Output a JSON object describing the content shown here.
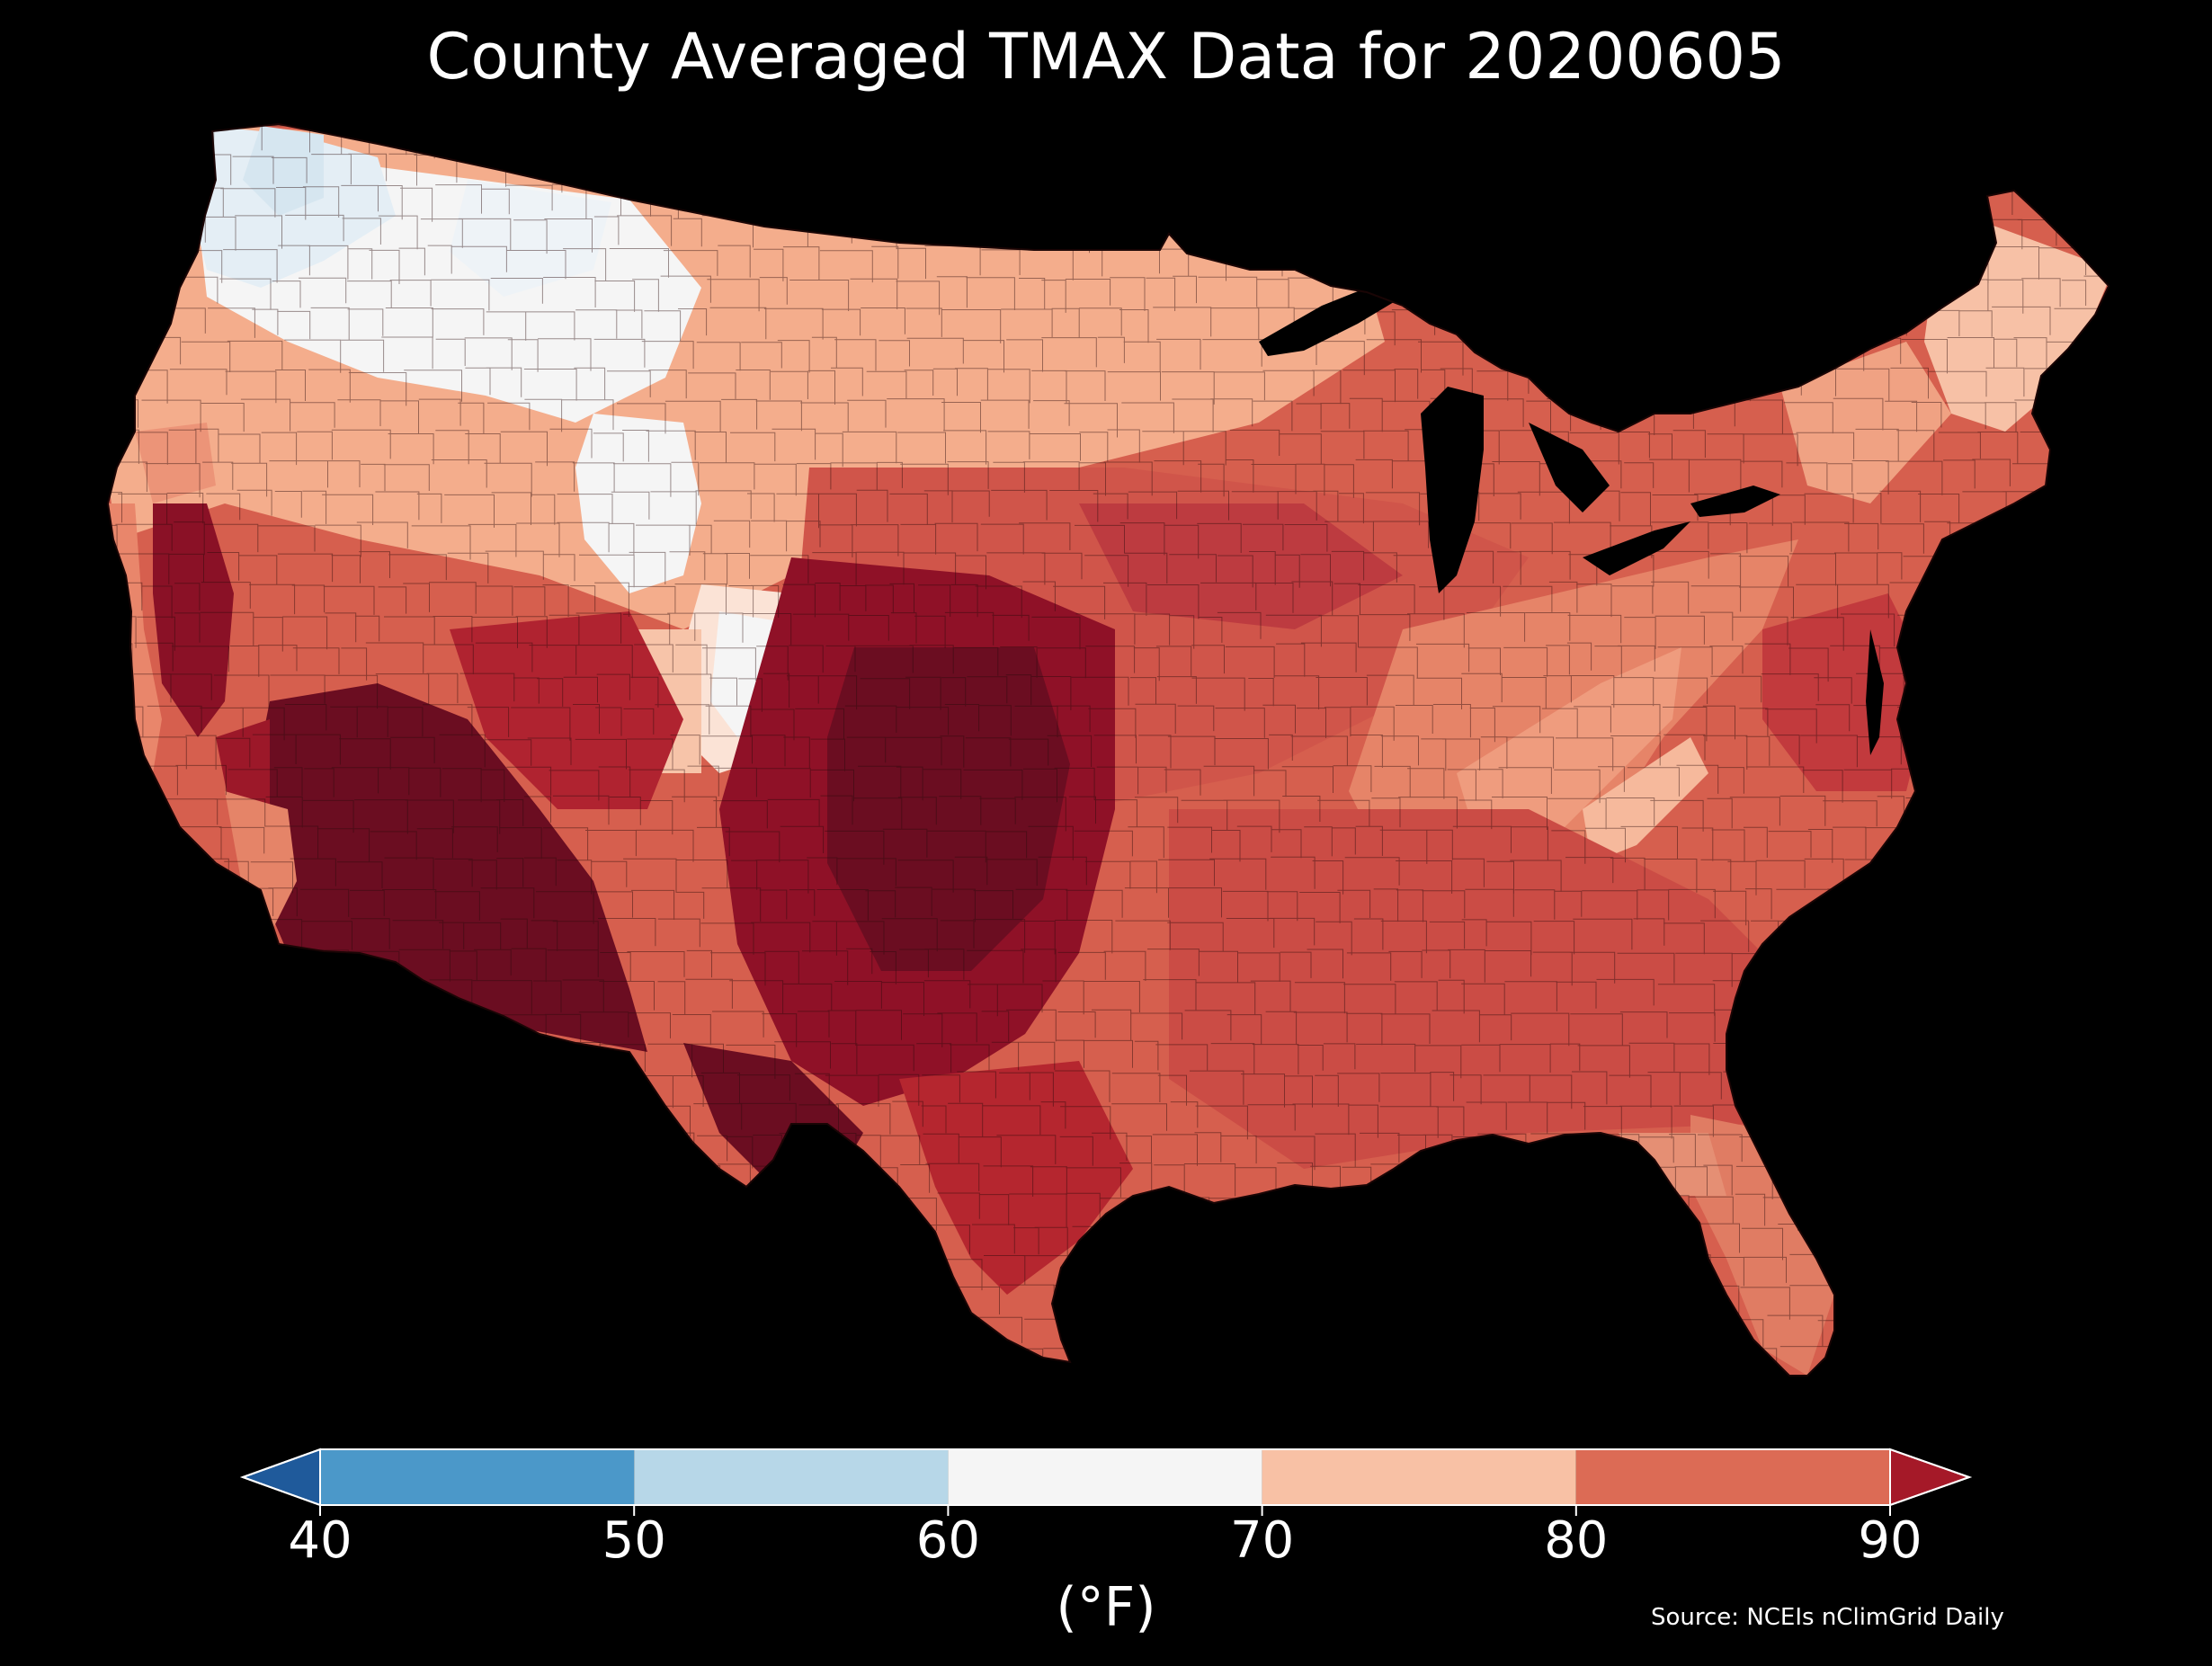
{
  "title": "County Averaged TMAX Data for 20200605",
  "colorbar": {
    "unit_label": "(°F)",
    "ticks": [
      "40",
      "50",
      "60",
      "70",
      "80",
      "90"
    ],
    "bins": [
      {
        "from": 40,
        "to": 50,
        "color": "#4b98c9"
      },
      {
        "from": 50,
        "to": 60,
        "color": "#b7d7e8"
      },
      {
        "from": 60,
        "to": 70,
        "color": "#f5f5f5"
      },
      {
        "from": 70,
        "to": 80,
        "color": "#f8c1a5"
      },
      {
        "from": 80,
        "to": 90,
        "color": "#dc6b55"
      }
    ],
    "under_color": "#1f5a9b",
    "over_color": "#a51928",
    "extend": "both"
  },
  "map": {
    "region": "Contiguous United States",
    "units": "county",
    "colors": {
      "below_60": "#dfe9f1",
      "60_70": "#f5f5f5",
      "70_80": "#f4ad8c",
      "80_90": "#d2574a",
      "above_90": "#6b0d21"
    }
  },
  "source": "Source: NCEIs nClimGrid Daily"
}
